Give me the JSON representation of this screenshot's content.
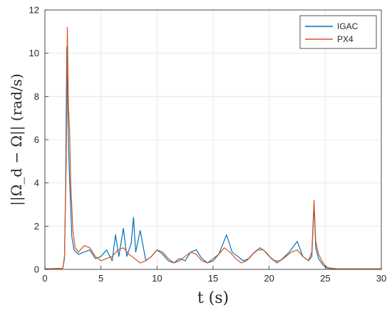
{
  "chart_data": {
    "type": "line",
    "title": "",
    "xlabel": "t (s)",
    "ylabel": "||Ω_d − Ω|| (rad/s)",
    "xlim": [
      0,
      30
    ],
    "ylim": [
      0,
      12
    ],
    "grid": true,
    "legend_position": "top-right",
    "x_ticks": [
      0,
      5,
      10,
      15,
      20,
      25,
      30
    ],
    "y_ticks": [
      0,
      2,
      4,
      6,
      8,
      10,
      12
    ],
    "x_tick_labels": [
      "0",
      "5",
      "10",
      "15",
      "20",
      "25",
      "30"
    ],
    "y_tick_labels": [
      "0",
      "2",
      "4",
      "6",
      "8",
      "10",
      "12"
    ],
    "series": [
      {
        "name": "IGAC",
        "color": "#0072BD",
        "points": [
          [
            0,
            0.02
          ],
          [
            1.6,
            0.05
          ],
          [
            1.75,
            0.5
          ],
          [
            1.85,
            4.0
          ],
          [
            1.95,
            10.3
          ],
          [
            2.05,
            7.0
          ],
          [
            2.15,
            5.0
          ],
          [
            2.25,
            3.5
          ],
          [
            2.4,
            1.5
          ],
          [
            2.6,
            0.9
          ],
          [
            3.0,
            0.7
          ],
          [
            3.5,
            0.8
          ],
          [
            4.0,
            0.9
          ],
          [
            4.5,
            0.5
          ],
          [
            5.0,
            0.6
          ],
          [
            5.5,
            0.9
          ],
          [
            6.0,
            0.4
          ],
          [
            6.3,
            1.6
          ],
          [
            6.6,
            0.6
          ],
          [
            7.0,
            1.9
          ],
          [
            7.3,
            0.6
          ],
          [
            7.7,
            1.2
          ],
          [
            7.9,
            2.4
          ],
          [
            8.1,
            0.8
          ],
          [
            8.5,
            1.8
          ],
          [
            9.0,
            0.4
          ],
          [
            9.5,
            0.6
          ],
          [
            10.0,
            0.9
          ],
          [
            10.5,
            0.7
          ],
          [
            11.0,
            0.4
          ],
          [
            11.5,
            0.3
          ],
          [
            12.0,
            0.5
          ],
          [
            12.5,
            0.4
          ],
          [
            13.0,
            0.8
          ],
          [
            13.5,
            0.9
          ],
          [
            14.0,
            0.5
          ],
          [
            14.5,
            0.3
          ],
          [
            15.0,
            0.4
          ],
          [
            15.5,
            0.7
          ],
          [
            16.2,
            1.6
          ],
          [
            16.7,
            0.8
          ],
          [
            17.2,
            0.6
          ],
          [
            17.7,
            0.4
          ],
          [
            18.2,
            0.5
          ],
          [
            18.7,
            0.8
          ],
          [
            19.2,
            1.0
          ],
          [
            19.7,
            0.8
          ],
          [
            20.2,
            0.5
          ],
          [
            20.7,
            0.3
          ],
          [
            21.2,
            0.5
          ],
          [
            21.8,
            0.8
          ],
          [
            22.5,
            1.3
          ],
          [
            23.0,
            0.6
          ],
          [
            23.5,
            0.4
          ],
          [
            23.8,
            0.6
          ],
          [
            24.0,
            3.0
          ],
          [
            24.15,
            1.0
          ],
          [
            24.4,
            0.5
          ],
          [
            24.8,
            0.2
          ],
          [
            25.2,
            0.05
          ],
          [
            26,
            0.03
          ],
          [
            30,
            0.02
          ]
        ]
      },
      {
        "name": "PX4",
        "color": "#D95319",
        "points": [
          [
            0,
            0.02
          ],
          [
            1.6,
            0.05
          ],
          [
            1.75,
            0.6
          ],
          [
            1.9,
            5.0
          ],
          [
            2.0,
            11.2
          ],
          [
            2.1,
            7.5
          ],
          [
            2.2,
            6.5
          ],
          [
            2.3,
            4.0
          ],
          [
            2.5,
            1.8
          ],
          [
            2.7,
            1.0
          ],
          [
            3.0,
            0.8
          ],
          [
            3.5,
            1.1
          ],
          [
            4.0,
            1.0
          ],
          [
            4.5,
            0.6
          ],
          [
            5.0,
            0.4
          ],
          [
            5.5,
            0.5
          ],
          [
            6.0,
            0.6
          ],
          [
            6.5,
            0.9
          ],
          [
            7.0,
            1.0
          ],
          [
            7.5,
            0.7
          ],
          [
            8.0,
            0.5
          ],
          [
            8.5,
            0.3
          ],
          [
            9.0,
            0.4
          ],
          [
            9.5,
            0.6
          ],
          [
            10.0,
            0.9
          ],
          [
            10.5,
            0.8
          ],
          [
            11.0,
            0.5
          ],
          [
            11.5,
            0.3
          ],
          [
            12.0,
            0.4
          ],
          [
            12.5,
            0.6
          ],
          [
            13.0,
            0.8
          ],
          [
            13.5,
            0.7
          ],
          [
            14.0,
            0.4
          ],
          [
            14.5,
            0.3
          ],
          [
            15.0,
            0.5
          ],
          [
            15.5,
            0.7
          ],
          [
            16.0,
            1.0
          ],
          [
            16.5,
            0.8
          ],
          [
            17.0,
            0.5
          ],
          [
            17.5,
            0.3
          ],
          [
            18.0,
            0.4
          ],
          [
            18.5,
            0.7
          ],
          [
            19.0,
            0.9
          ],
          [
            19.5,
            0.9
          ],
          [
            20.0,
            0.6
          ],
          [
            20.5,
            0.4
          ],
          [
            21.0,
            0.4
          ],
          [
            21.5,
            0.6
          ],
          [
            22.0,
            0.8
          ],
          [
            22.5,
            0.9
          ],
          [
            23.0,
            0.6
          ],
          [
            23.5,
            0.4
          ],
          [
            23.8,
            0.8
          ],
          [
            24.0,
            3.2
          ],
          [
            24.15,
            1.3
          ],
          [
            24.4,
            0.7
          ],
          [
            24.8,
            0.3
          ],
          [
            25.2,
            0.08
          ],
          [
            26,
            0.03
          ],
          [
            30,
            0.02
          ]
        ]
      }
    ]
  }
}
